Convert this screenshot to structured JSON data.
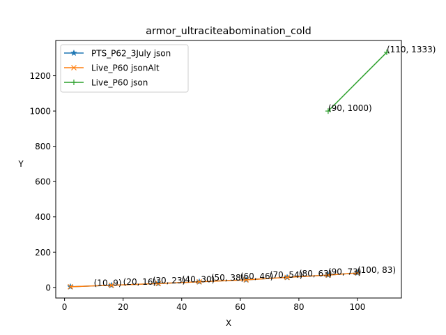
{
  "chart_data": {
    "type": "line",
    "title": "armor_ultraciteabomination_cold",
    "xlabel": "X",
    "ylabel": "Y",
    "xlim": [
      -3,
      115
    ],
    "ylim": [
      -60,
      1400
    ],
    "x_ticks": [
      0,
      20,
      40,
      60,
      80,
      100
    ],
    "y_ticks": [
      0,
      200,
      400,
      600,
      800,
      1000,
      1200
    ],
    "grid": false,
    "legend_position": "top-left",
    "series": [
      {
        "name": "PTS_P62_3July json",
        "color": "#1f77b4",
        "marker": "star",
        "x": [
          2,
          16,
          32,
          46,
          62,
          76,
          90,
          100
        ],
        "y": [
          4,
          12,
          22,
          32,
          43,
          57,
          70,
          82
        ]
      },
      {
        "name": "Live_P60 jsonAlt",
        "color": "#ff7f0e",
        "marker": "x",
        "x": [
          2,
          16,
          32,
          46,
          62,
          76,
          90,
          100
        ],
        "y": [
          4,
          12,
          22,
          32,
          43,
          57,
          70,
          82
        ]
      },
      {
        "name": "Live_P60 json",
        "color": "#2ca02c",
        "marker": "plus",
        "x": [
          90,
          110
        ],
        "y": [
          1000,
          1333
        ]
      }
    ],
    "annotations": [
      {
        "text": "(10, 9)",
        "x": 10,
        "y": 9
      },
      {
        "text": "(20, 16)",
        "x": 20,
        "y": 16
      },
      {
        "text": "(30, 23)",
        "x": 30,
        "y": 23
      },
      {
        "text": "(40, 30)",
        "x": 40,
        "y": 30
      },
      {
        "text": "(50, 38)",
        "x": 50,
        "y": 38
      },
      {
        "text": "(60, 46)",
        "x": 60,
        "y": 46
      },
      {
        "text": "(70, 54)",
        "x": 70,
        "y": 54
      },
      {
        "text": "(80, 63)",
        "x": 80,
        "y": 63
      },
      {
        "text": "(90, 73)",
        "x": 90,
        "y": 73
      },
      {
        "text": "(100, 83)",
        "x": 100,
        "y": 83
      },
      {
        "text": "(90, 1000)",
        "x": 90,
        "y": 1000
      },
      {
        "text": "(110, 1333)",
        "x": 110,
        "y": 1333
      }
    ]
  }
}
